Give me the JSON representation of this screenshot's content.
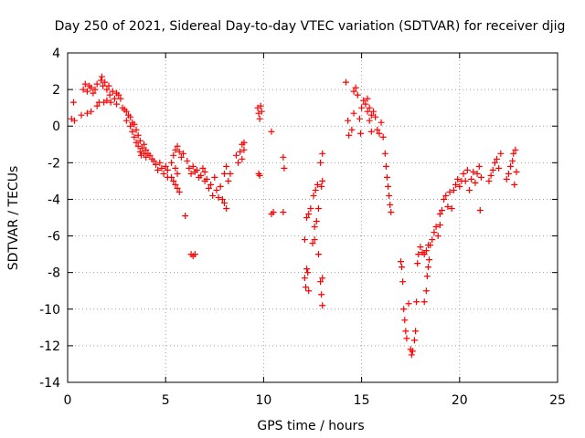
{
  "chart_data": {
    "type": "scatter",
    "title": "Day 250 of 2021, Sidereal Day-to-day VTEC variation (SDTVAR) for receiver djig",
    "xlabel": "GPS time / hours",
    "ylabel": "SDTVAR / TECUs",
    "xlim": [
      0,
      25
    ],
    "ylim": [
      -14,
      4
    ],
    "xticks": [
      0,
      5,
      10,
      15,
      20,
      25
    ],
    "yticks": [
      -14,
      -12,
      -10,
      -8,
      -6,
      -4,
      -2,
      0,
      2,
      4
    ],
    "grid": true,
    "marker": "plus",
    "color": "#ff0000",
    "points_note": "values estimated from the plotted marker clusters",
    "series": [
      {
        "name": "SDTVAR",
        "points": [
          [
            0.2,
            0.4
          ],
          [
            0.3,
            1.3
          ],
          [
            0.35,
            0.3
          ],
          [
            0.7,
            0.6
          ],
          [
            0.8,
            2.0
          ],
          [
            0.9,
            2.3
          ],
          [
            1.0,
            0.7
          ],
          [
            1.0,
            1.9
          ],
          [
            1.1,
            2.2
          ],
          [
            1.2,
            0.8
          ],
          [
            1.2,
            2.1
          ],
          [
            1.3,
            1.8
          ],
          [
            1.4,
            2.0
          ],
          [
            1.5,
            1.1
          ],
          [
            1.5,
            2.3
          ],
          [
            1.6,
            1.3
          ],
          [
            1.7,
            2.5
          ],
          [
            1.75,
            2.7
          ],
          [
            1.8,
            2.2
          ],
          [
            1.85,
            1.3
          ],
          [
            1.9,
            2.4
          ],
          [
            2.0,
            2.0
          ],
          [
            2.0,
            1.4
          ],
          [
            2.1,
            2.2
          ],
          [
            2.15,
            1.7
          ],
          [
            2.2,
            1.3
          ],
          [
            2.3,
            1.9
          ],
          [
            2.4,
            1.5
          ],
          [
            2.5,
            1.2
          ],
          [
            2.5,
            1.8
          ],
          [
            2.6,
            1.7
          ],
          [
            2.7,
            1.5
          ],
          [
            2.8,
            1.0
          ],
          [
            2.9,
            0.9
          ],
          [
            3.0,
            0.8
          ],
          [
            3.0,
            0.3
          ],
          [
            3.1,
            0.6
          ],
          [
            3.2,
            0.0
          ],
          [
            3.2,
            0.5
          ],
          [
            3.3,
            -0.3
          ],
          [
            3.3,
            0.2
          ],
          [
            3.4,
            -0.6
          ],
          [
            3.4,
            0.1
          ],
          [
            3.5,
            -0.9
          ],
          [
            3.5,
            -0.2
          ],
          [
            3.6,
            -1.1
          ],
          [
            3.6,
            -0.5
          ],
          [
            3.7,
            -1.4
          ],
          [
            3.7,
            -0.8
          ],
          [
            3.75,
            -1.6
          ],
          [
            3.8,
            -1.2
          ],
          [
            3.9,
            -1.5
          ],
          [
            3.9,
            -1.0
          ],
          [
            4.0,
            -1.7
          ],
          [
            4.0,
            -1.3
          ],
          [
            4.1,
            -1.5
          ],
          [
            4.2,
            -1.6
          ],
          [
            4.3,
            -1.8
          ],
          [
            4.4,
            -1.9
          ],
          [
            4.5,
            -2.1
          ],
          [
            4.6,
            -2.4
          ],
          [
            4.7,
            -2.0
          ],
          [
            4.8,
            -2.3
          ],
          [
            4.9,
            -2.6
          ],
          [
            5.0,
            -2.2
          ],
          [
            5.1,
            -2.4
          ],
          [
            5.1,
            -2.8
          ],
          [
            5.3,
            -2.0
          ],
          [
            5.4,
            -1.6
          ],
          [
            5.5,
            -1.3
          ],
          [
            5.5,
            -2.3
          ],
          [
            5.6,
            -1.1
          ],
          [
            5.6,
            -2.6
          ],
          [
            5.7,
            -1.4
          ],
          [
            5.8,
            -1.7
          ],
          [
            5.3,
            -2.8
          ],
          [
            5.4,
            -3.0
          ],
          [
            5.5,
            -3.2
          ],
          [
            5.6,
            -3.4
          ],
          [
            5.7,
            -3.6
          ],
          [
            5.9,
            -1.5
          ],
          [
            6.0,
            -4.9
          ],
          [
            6.1,
            -1.9
          ],
          [
            6.2,
            -2.3
          ],
          [
            6.3,
            -2.6
          ],
          [
            6.3,
            -7.0
          ],
          [
            6.4,
            -2.2
          ],
          [
            6.4,
            -7.1
          ],
          [
            6.5,
            -2.5
          ],
          [
            6.5,
            -7.0
          ],
          [
            6.6,
            -2.4
          ],
          [
            6.7,
            -2.8
          ],
          [
            6.8,
            -2.7
          ],
          [
            6.9,
            -2.3
          ],
          [
            7.0,
            -2.5
          ],
          [
            7.0,
            -3.0
          ],
          [
            7.1,
            -2.9
          ],
          [
            7.2,
            -3.4
          ],
          [
            7.3,
            -3.2
          ],
          [
            7.4,
            -3.8
          ],
          [
            7.5,
            -2.8
          ],
          [
            7.6,
            -3.5
          ],
          [
            7.7,
            -3.9
          ],
          [
            7.8,
            -3.3
          ],
          [
            7.9,
            -4.0
          ],
          [
            8.0,
            -2.6
          ],
          [
            8.0,
            -4.2
          ],
          [
            8.1,
            -4.5
          ],
          [
            8.1,
            -2.2
          ],
          [
            8.2,
            -3.0
          ],
          [
            8.3,
            -2.6
          ],
          [
            8.6,
            -1.6
          ],
          [
            8.7,
            -2.0
          ],
          [
            8.8,
            -1.4
          ],
          [
            8.9,
            -1.0
          ],
          [
            8.9,
            -1.8
          ],
          [
            9.0,
            -0.9
          ],
          [
            9.0,
            -1.3
          ],
          [
            9.7,
            1.0
          ],
          [
            9.75,
            0.7
          ],
          [
            9.8,
            0.4
          ],
          [
            9.85,
            1.1
          ],
          [
            9.9,
            0.8
          ],
          [
            9.75,
            -2.6
          ],
          [
            9.8,
            -2.7
          ],
          [
            10.4,
            -0.3
          ],
          [
            10.4,
            -4.8
          ],
          [
            10.5,
            -4.7
          ],
          [
            11.0,
            -1.7
          ],
          [
            11.0,
            -4.7
          ],
          [
            11.05,
            -2.3
          ],
          [
            12.1,
            -6.2
          ],
          [
            12.1,
            -8.3
          ],
          [
            12.15,
            -8.8
          ],
          [
            12.2,
            -5.0
          ],
          [
            12.2,
            -7.8
          ],
          [
            12.25,
            -8.0
          ],
          [
            12.3,
            -4.8
          ],
          [
            12.3,
            -9.0
          ],
          [
            12.4,
            -4.5
          ],
          [
            12.5,
            -6.4
          ],
          [
            12.55,
            -3.8
          ],
          [
            12.6,
            -5.5
          ],
          [
            12.6,
            -6.2
          ],
          [
            12.65,
            -3.5
          ],
          [
            12.7,
            -5.2
          ],
          [
            12.75,
            -3.2
          ],
          [
            12.8,
            -7.0
          ],
          [
            12.8,
            -4.5
          ],
          [
            12.9,
            -2.0
          ],
          [
            12.95,
            -3.3
          ],
          [
            13.0,
            -1.5
          ],
          [
            13.0,
            -3.0
          ],
          [
            12.9,
            -8.5
          ],
          [
            12.95,
            -9.2
          ],
          [
            13.0,
            -9.8
          ],
          [
            13.0,
            -8.3
          ],
          [
            14.2,
            2.4
          ],
          [
            14.3,
            0.3
          ],
          [
            14.35,
            -0.5
          ],
          [
            14.5,
            -0.2
          ],
          [
            14.6,
            0.7
          ],
          [
            14.6,
            1.9
          ],
          [
            14.7,
            2.1
          ],
          [
            14.8,
            1.7
          ],
          [
            14.9,
            0.4
          ],
          [
            14.95,
            -0.4
          ],
          [
            15.0,
            1.0
          ],
          [
            15.1,
            1.4
          ],
          [
            15.2,
            1.2
          ],
          [
            15.3,
            0.8
          ],
          [
            15.3,
            1.5
          ],
          [
            15.4,
            1.0
          ],
          [
            15.4,
            0.3
          ],
          [
            15.5,
            0.6
          ],
          [
            15.5,
            -0.3
          ],
          [
            15.6,
            0.8
          ],
          [
            15.7,
            0.5
          ],
          [
            15.8,
            -0.2
          ],
          [
            15.9,
            -0.4
          ],
          [
            16.0,
            0.2
          ],
          [
            16.1,
            -0.6
          ],
          [
            16.2,
            -1.5
          ],
          [
            16.25,
            -2.2
          ],
          [
            16.3,
            -2.8
          ],
          [
            16.35,
            -3.3
          ],
          [
            16.4,
            -3.8
          ],
          [
            16.45,
            -4.3
          ],
          [
            16.5,
            -4.7
          ],
          [
            17.0,
            -7.4
          ],
          [
            17.05,
            -7.7
          ],
          [
            17.1,
            -8.5
          ],
          [
            17.15,
            -10.0
          ],
          [
            17.2,
            -10.6
          ],
          [
            17.25,
            -11.2
          ],
          [
            17.3,
            -11.6
          ],
          [
            17.4,
            -9.7
          ],
          [
            17.5,
            -12.2
          ],
          [
            17.55,
            -12.5
          ],
          [
            17.6,
            -12.3
          ],
          [
            17.7,
            -11.7
          ],
          [
            17.75,
            -11.2
          ],
          [
            17.8,
            -9.6
          ],
          [
            17.85,
            -7.5
          ],
          [
            17.9,
            -7.0
          ],
          [
            18.0,
            -6.6
          ],
          [
            18.1,
            -6.9
          ],
          [
            18.2,
            -9.6
          ],
          [
            18.3,
            -9.0
          ],
          [
            18.35,
            -8.2
          ],
          [
            18.4,
            -7.7
          ],
          [
            18.45,
            -7.3
          ],
          [
            18.5,
            -6.5
          ],
          [
            18.6,
            -6.2
          ],
          [
            18.7,
            -5.8
          ],
          [
            18.8,
            -5.5
          ],
          [
            18.9,
            -6.0
          ],
          [
            19.0,
            -5.4
          ],
          [
            19.0,
            -4.8
          ],
          [
            18.2,
            -7.0
          ],
          [
            18.3,
            -6.8
          ],
          [
            18.4,
            -6.5
          ],
          [
            19.1,
            -4.6
          ],
          [
            19.2,
            -4.0
          ],
          [
            19.3,
            -3.8
          ],
          [
            19.4,
            -4.4
          ],
          [
            19.5,
            -3.6
          ],
          [
            19.6,
            -4.5
          ],
          [
            19.7,
            -3.5
          ],
          [
            19.8,
            -3.2
          ],
          [
            19.9,
            -2.9
          ],
          [
            20.0,
            -3.3
          ],
          [
            20.1,
            -3.0
          ],
          [
            20.2,
            -2.6
          ],
          [
            20.3,
            -3.0
          ],
          [
            20.4,
            -2.4
          ],
          [
            20.5,
            -3.5
          ],
          [
            20.6,
            -2.9
          ],
          [
            20.7,
            -2.5
          ],
          [
            20.8,
            -3.1
          ],
          [
            20.9,
            -2.6
          ],
          [
            21.0,
            -2.2
          ],
          [
            21.05,
            -4.6
          ],
          [
            21.1,
            -2.8
          ],
          [
            21.5,
            -3.0
          ],
          [
            21.6,
            -2.7
          ],
          [
            21.7,
            -2.4
          ],
          [
            21.8,
            -2.0
          ],
          [
            21.9,
            -1.8
          ],
          [
            22.0,
            -2.3
          ],
          [
            22.1,
            -1.5
          ],
          [
            22.4,
            -2.9
          ],
          [
            22.5,
            -2.6
          ],
          [
            22.6,
            -2.2
          ],
          [
            22.7,
            -1.9
          ],
          [
            22.75,
            -1.5
          ],
          [
            22.8,
            -3.2
          ],
          [
            22.85,
            -1.3
          ],
          [
            22.9,
            -2.5
          ]
        ]
      }
    ]
  }
}
